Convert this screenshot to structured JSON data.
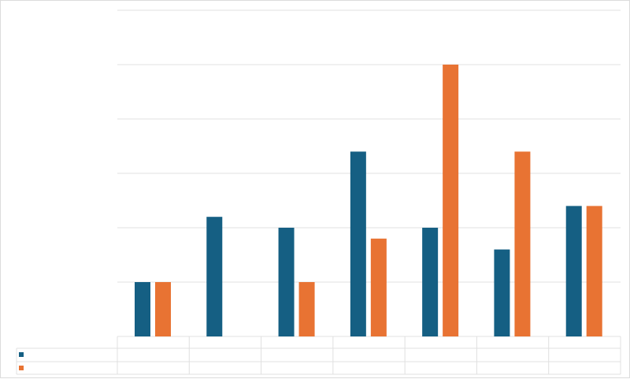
{
  "chart_data": {
    "type": "bar",
    "title": "",
    "xlabel": "",
    "ylabel": "",
    "categories": [
      "",
      "",
      "",
      "",
      "",
      "",
      ""
    ],
    "series": [
      {
        "color": "#155f83",
        "values": [
          1,
          2.2,
          2,
          3.4,
          2,
          1.6,
          2.4
        ]
      },
      {
        "color": "#e87333",
        "values": [
          1,
          0,
          1,
          1.8,
          5,
          3.4,
          2.4
        ]
      }
    ],
    "ylim": [
      0,
      6
    ],
    "grid": true,
    "legend": "data-table-bottom",
    "gridline_color": "#e0e0e0"
  }
}
